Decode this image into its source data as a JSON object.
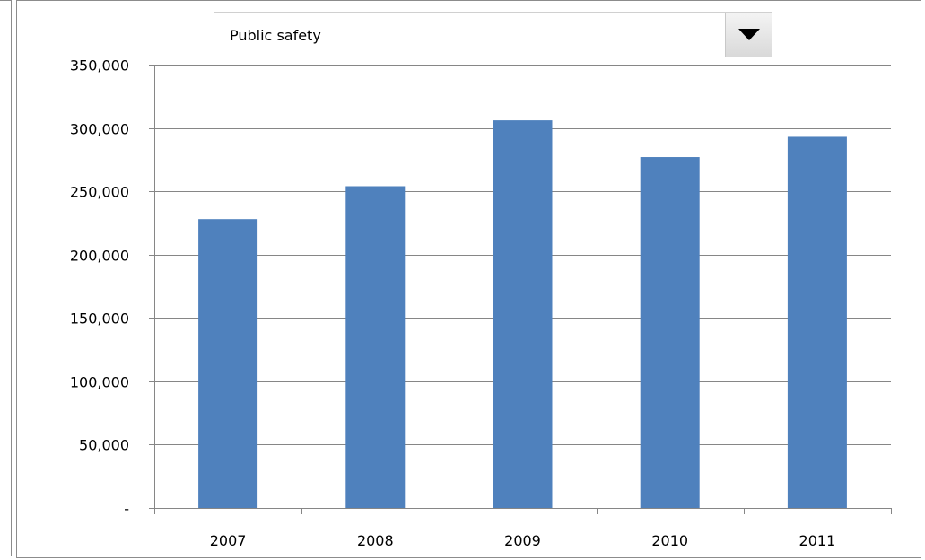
{
  "selector": {
    "selected": "Public safety"
  },
  "chart_data": {
    "type": "bar",
    "title": "",
    "xlabel": "",
    "ylabel": "",
    "categories": [
      "2007",
      "2008",
      "2009",
      "2010",
      "2011"
    ],
    "values": [
      228000,
      254000,
      306000,
      277000,
      293000
    ],
    "ylim": [
      0,
      350000
    ],
    "yticks": [
      0,
      50000,
      100000,
      150000,
      200000,
      250000,
      300000,
      350000
    ],
    "ytick_labels": [
      "-",
      "50,000",
      "100,000",
      "150,000",
      "200,000",
      "250,000",
      "300,000",
      "350,000"
    ],
    "grid": true,
    "bar_color": "#4f81bd",
    "gridline_color": "#868686"
  }
}
